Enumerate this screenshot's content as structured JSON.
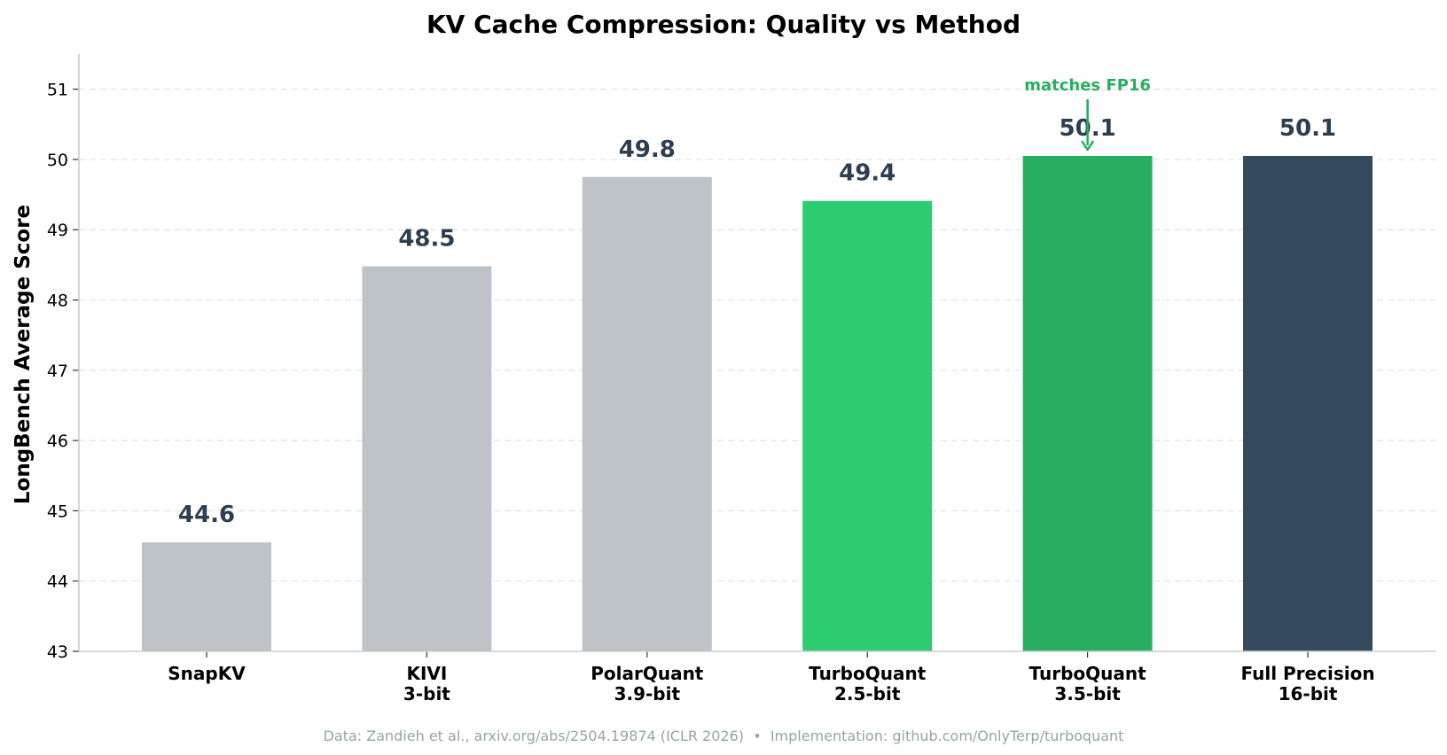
{
  "chart_data": {
    "type": "bar",
    "title": "KV Cache Compression: Quality vs Method",
    "xlabel": "",
    "ylabel": "LongBench Average Score",
    "ylim": [
      43,
      51.5
    ],
    "yticks": [
      43,
      44,
      45,
      46,
      47,
      48,
      49,
      50,
      51
    ],
    "grid": "horizontal dashed",
    "categories": [
      [
        "SnapKV"
      ],
      [
        "KIVI",
        "3-bit"
      ],
      [
        "PolarQuant",
        "3.9-bit"
      ],
      [
        "TurboQuant",
        "2.5-bit"
      ],
      [
        "TurboQuant",
        "3.5-bit"
      ],
      [
        "Full Precision",
        "16-bit"
      ]
    ],
    "values": [
      44.55,
      48.48,
      49.75,
      49.41,
      50.05,
      50.05
    ],
    "value_labels": [
      "44.6",
      "48.5",
      "49.8",
      "49.4",
      "50.1",
      "50.1"
    ],
    "colors": [
      "#bdc3c7",
      "#bdc3c7",
      "#bdc3c7",
      "#2ecc71",
      "#27ae60",
      "#34495e"
    ],
    "annotation": {
      "text": "matches FP16",
      "bar_index": 4,
      "color": "#27ae60"
    }
  },
  "footer": "Data: Zandieh et al., arxiv.org/abs/2504.19874 (ICLR 2026)  •  Implementation: github.com/OnlyTerp/turboquant"
}
